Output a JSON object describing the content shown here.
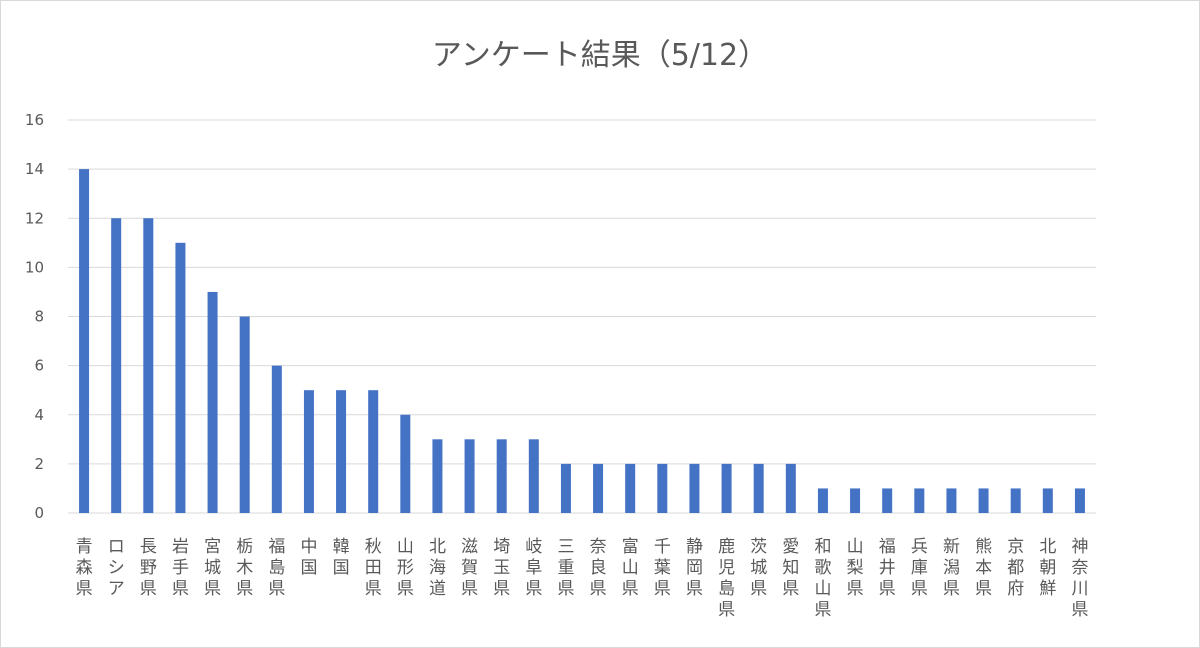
{
  "chart_data": {
    "type": "bar",
    "title": "アンケート結果（5/12）",
    "xlabel": "",
    "ylabel": "",
    "ylim": [
      0,
      16
    ],
    "yticks": [
      0,
      2,
      4,
      6,
      8,
      10,
      12,
      14,
      16
    ],
    "grid": true,
    "legend": "none",
    "bar_color": "#4472c4",
    "categories": [
      "青森県",
      "ロシア",
      "長野県",
      "岩手県",
      "宮城県",
      "栃木県",
      "福島県",
      "中国",
      "韓国",
      "秋田県",
      "山形県",
      "北海道",
      "滋賀県",
      "埼玉県",
      "岐阜県",
      "三重県",
      "奈良県",
      "富山県",
      "千葉県",
      "静岡県",
      "鹿児島県",
      "茨城県",
      "愛知県",
      "和歌山県",
      "山梨県",
      "福井県",
      "兵庫県",
      "新潟県",
      "熊本県",
      "京都府",
      "北朝鮮",
      "神奈川県"
    ],
    "values": [
      14,
      12,
      12,
      11,
      9,
      8,
      6,
      5,
      5,
      5,
      4,
      3,
      3,
      3,
      3,
      2,
      2,
      2,
      2,
      2,
      2,
      2,
      2,
      1,
      1,
      1,
      1,
      1,
      1,
      1,
      1,
      1
    ]
  }
}
